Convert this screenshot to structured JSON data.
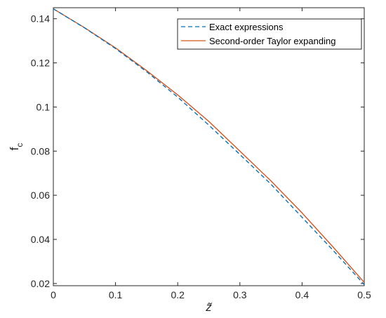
{
  "chart_data": {
    "type": "line",
    "title": "",
    "xlabel": "z̃",
    "ylabel": "f",
    "ylabel_subscript": "c",
    "xlim": [
      0,
      0.5
    ],
    "ylim": [
      0.019,
      0.145
    ],
    "xticks": [
      0,
      0.1,
      0.2,
      0.3,
      0.4,
      0.5
    ],
    "xtick_labels": [
      "0",
      "0.1",
      "0.2",
      "0.3",
      "0.4",
      "0.5"
    ],
    "yticks": [
      0.02,
      0.04,
      0.06,
      0.08,
      0.1,
      0.12,
      0.14
    ],
    "ytick_labels": [
      "0.02",
      "0.04",
      "0.06",
      "0.08",
      "0.1",
      "0.12",
      "0.14"
    ],
    "grid": false,
    "legend_position": "top-right",
    "x": [
      0,
      0.05,
      0.1,
      0.15,
      0.2,
      0.25,
      0.3,
      0.35,
      0.4,
      0.45,
      0.5
    ],
    "series": [
      {
        "name": "Exact expressions",
        "color": "#0072BD",
        "style": "dashed",
        "values": [
          0.1445,
          0.1359,
          0.1265,
          0.116,
          0.1045,
          0.0918,
          0.0785,
          0.065,
          0.05,
          0.035,
          0.0195
        ]
      },
      {
        "name": "Second-order Taylor expanding",
        "color": "#D95319",
        "style": "solid",
        "values": [
          0.1445,
          0.136,
          0.1268,
          0.1165,
          0.1055,
          0.0935,
          0.08,
          0.0665,
          0.052,
          0.0365,
          0.0205
        ]
      }
    ]
  }
}
